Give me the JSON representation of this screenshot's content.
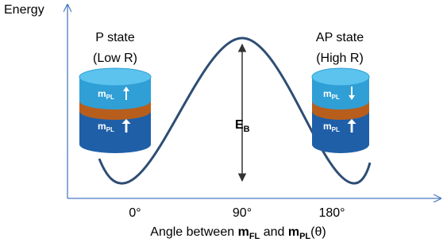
{
  "axes": {
    "y_label": "Energy",
    "x_ticks": [
      "0°",
      "90°",
      "180°"
    ],
    "x_label": {
      "prefix": "Angle between ",
      "m1": "m",
      "sub1": "FL",
      "middle": " and ",
      "m2": "m",
      "sub2": "PL",
      "suffix": "(θ)"
    }
  },
  "states": [
    {
      "name": "P state",
      "resistance": "(Low R)",
      "layers": [
        {
          "symbol": "m",
          "subscript": "PL"
        },
        {
          "symbol": "m",
          "subscript": "PL"
        }
      ]
    },
    {
      "name": "AP state",
      "resistance": "(High R)",
      "layers": [
        {
          "symbol": "m",
          "subscript": "PL"
        },
        {
          "symbol": "m",
          "subscript": "PL"
        }
      ]
    }
  ],
  "barrier": {
    "symbol": "E",
    "subscript": "B"
  }
}
